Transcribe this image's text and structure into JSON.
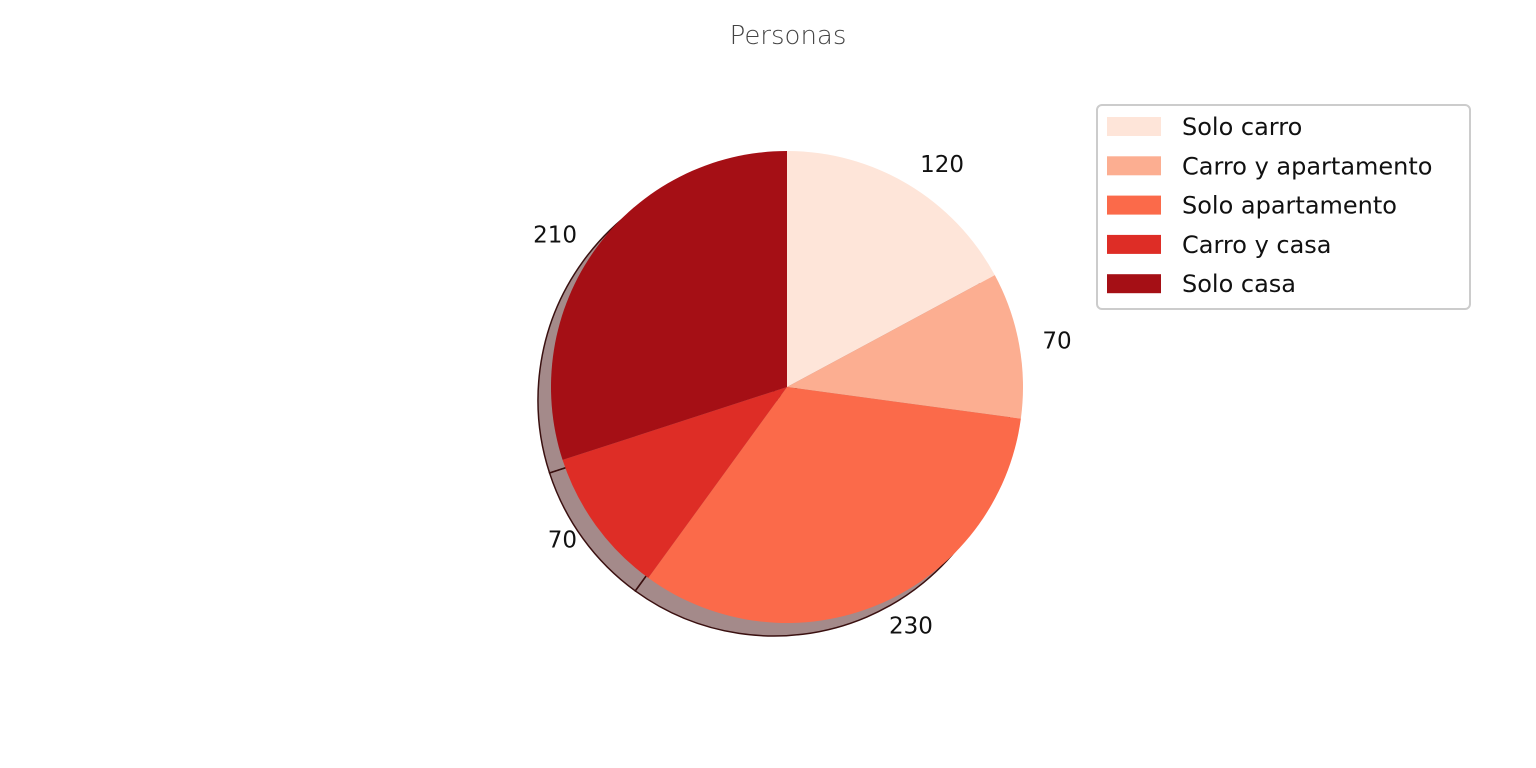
{
  "chart_data": {
    "type": "pie",
    "title": "Personas",
    "categories": [
      "Solo carro",
      "Carro y apartamento",
      "Solo apartamento",
      "Carro y casa",
      "Solo casa"
    ],
    "values": [
      120,
      70,
      230,
      70,
      210
    ],
    "data_labels": [
      "120",
      "70",
      "230",
      "70",
      "210"
    ],
    "colors": [
      "#fee5d9",
      "#fcae91",
      "#fb6a4a",
      "#de2d26",
      "#a50f15"
    ],
    "start_angle_deg": 90,
    "direction": "clockwise",
    "shadow": true,
    "legend": {
      "placement": "right",
      "entries": [
        "Solo carro",
        "Carro y apartamento",
        "Solo apartamento",
        "Carro y casa",
        "Solo casa"
      ]
    }
  }
}
